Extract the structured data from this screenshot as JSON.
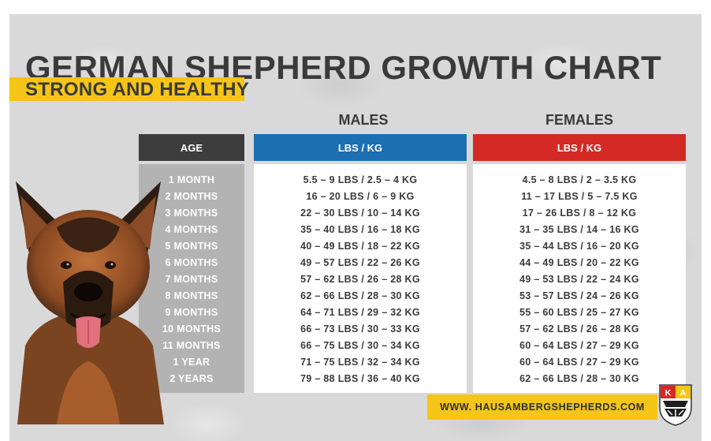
{
  "header": {
    "title": "GERMAN SHEPHERD GROWTH CHART",
    "subtitle": "STRONG AND HEALTHY"
  },
  "groups": {
    "males": "MALES",
    "females": "FEMALES"
  },
  "columns": {
    "age": "AGE",
    "males_unit": "LBS / KG",
    "females_unit": "LBS / KG"
  },
  "table": {
    "ages": [
      "1 MONTH",
      "2 MONTHS",
      "3 MONTHS",
      "4 MONTHS",
      "5 MONTHS",
      "6 MONTHS",
      "7 MONTHS",
      "8 MONTHS",
      "9 MONTHS",
      "10 MONTHS",
      "11 MONTHS",
      "1 YEAR",
      "2 YEARS"
    ],
    "males": [
      "5.5 – 9 LBS / 2.5 – 4 KG",
      "16 – 20 LBS / 6 – 9 KG",
      "22 – 30 LBS / 10 – 14 KG",
      "35 – 40 LBS / 16 – 18 KG",
      "40 – 49 LBS / 18 – 22 KG",
      "49 – 57 LBS / 22 – 26 KG",
      "57 – 62 LBS / 26 – 28 KG",
      "62 – 66 LBS / 28 – 30 KG",
      "64 – 71 LBS / 29 – 32 KG",
      "66 – 73 LBS / 30 – 33 KG",
      "66 – 75 LBS / 30 – 34 KG",
      "71 – 75 LBS / 32 – 34 KG",
      "79 – 88 LBS / 36 – 40 KG"
    ],
    "females": [
      "4.5 – 8 LBS / 2 – 3.5 KG",
      "11 – 17 LBS / 5 – 7.5 KG",
      "17 – 26 LBS / 8 – 12 KG",
      "31 – 35 LBS / 14 – 16 KG",
      "35 – 44 LBS / 16 – 20 KG",
      "44 – 49 LBS / 20 – 22 KG",
      "49 – 53 LBS / 22 – 24 KG",
      "53 – 57 LBS / 24 – 26 KG",
      "55 – 60 LBS / 25 – 27 KG",
      "57 – 62 LBS / 26 – 28 KG",
      "60 – 64 LBS / 27 – 29 KG",
      "60 – 64 LBS / 27 – 29 KG",
      "62 – 66 LBS / 28 – 30 KG"
    ]
  },
  "footer": {
    "website": "WWW. HAUSAMBERGSHEPHERDS.COM"
  },
  "logo": {
    "letters": [
      "K",
      "A"
    ]
  },
  "colors": {
    "title_text": "#3a3a3a",
    "accent_yellow": "#f5c518",
    "age_header": "#3d3d3d",
    "males_header": "#1d6fb3",
    "females_header": "#d42a26",
    "age_column": "#b3b3b3",
    "background": "#d9d9d9"
  },
  "icons": {
    "dog_image": "german-shepherd-photo",
    "logo": "kennel-crest-logo"
  }
}
